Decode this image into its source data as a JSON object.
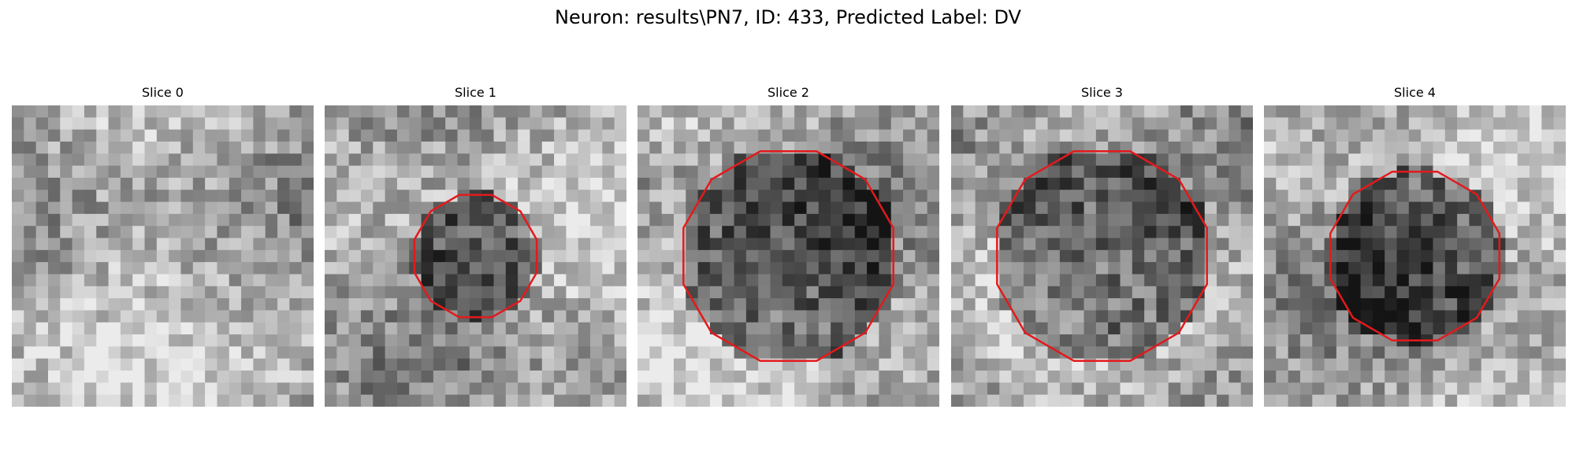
{
  "figure": {
    "title": "Neuron: results\\PN7, ID: 433, Predicted Label: DV"
  },
  "panels": [
    {
      "title": "Slice 0",
      "seed": 11,
      "has_contour": false
    },
    {
      "title": "Slice 1",
      "seed": 23,
      "has_contour": true,
      "contour_radius": 0.21
    },
    {
      "title": "Slice 2",
      "seed": 37,
      "has_contour": true,
      "contour_radius": 0.36
    },
    {
      "title": "Slice 3",
      "seed": 41,
      "has_contour": true,
      "contour_radius": 0.36
    },
    {
      "title": "Slice 4",
      "seed": 53,
      "has_contour": true,
      "contour_radius": 0.29
    }
  ],
  "colors": {
    "contour": "#e31a1c"
  }
}
